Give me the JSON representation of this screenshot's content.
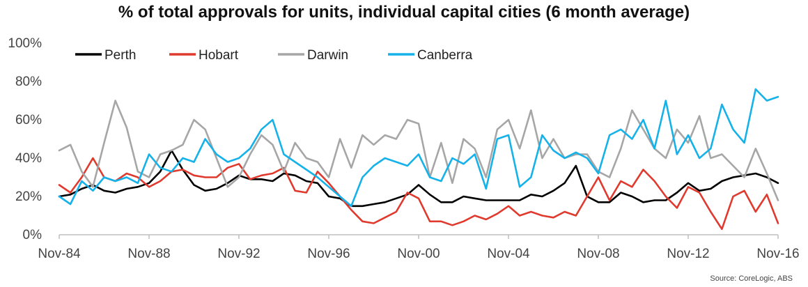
{
  "chart_data": {
    "type": "line",
    "title": "% of total approvals for units, individual capital cities (6 month average)",
    "xlabel": "",
    "ylabel": "",
    "x_ticks": [
      "Nov-84",
      "Nov-88",
      "Nov-92",
      "Nov-96",
      "Nov-00",
      "Nov-04",
      "Nov-08",
      "Nov-12",
      "Nov-16"
    ],
    "y_ticks": [
      "0%",
      "20%",
      "40%",
      "60%",
      "80%",
      "100%"
    ],
    "xlim": [
      "1984-11",
      "2016-11"
    ],
    "ylim": [
      0,
      100
    ],
    "grid": false,
    "legend_position": "top-left",
    "x": [
      "1984-11",
      "1985-05",
      "1985-11",
      "1986-05",
      "1986-11",
      "1987-05",
      "1987-11",
      "1988-05",
      "1988-11",
      "1989-05",
      "1989-11",
      "1990-05",
      "1990-11",
      "1991-05",
      "1991-11",
      "1992-05",
      "1992-11",
      "1993-05",
      "1993-11",
      "1994-05",
      "1994-11",
      "1995-05",
      "1995-11",
      "1996-05",
      "1996-11",
      "1997-05",
      "1997-11",
      "1998-05",
      "1998-11",
      "1999-05",
      "1999-11",
      "2000-05",
      "2000-11",
      "2001-05",
      "2001-11",
      "2002-05",
      "2002-11",
      "2003-05",
      "2003-11",
      "2004-05",
      "2004-11",
      "2005-05",
      "2005-11",
      "2006-05",
      "2006-11",
      "2007-05",
      "2007-11",
      "2008-05",
      "2008-11",
      "2009-05",
      "2009-11",
      "2010-05",
      "2010-11",
      "2011-05",
      "2011-11",
      "2012-05",
      "2012-11",
      "2013-05",
      "2013-11",
      "2014-05",
      "2014-11",
      "2015-05",
      "2015-11",
      "2016-05",
      "2016-11"
    ],
    "series": [
      {
        "name": "Perth",
        "color": "#000000",
        "values": [
          20,
          21,
          24,
          26,
          23,
          22,
          24,
          25,
          27,
          33,
          44,
          34,
          26,
          23,
          24,
          27,
          31,
          29,
          29,
          28,
          32,
          31,
          28,
          27,
          20,
          19,
          15,
          15,
          16,
          17,
          19,
          21,
          26,
          21,
          17,
          17,
          20,
          19,
          18,
          18,
          18,
          18,
          21,
          20,
          23,
          27,
          36,
          20,
          17,
          17,
          22,
          20,
          17,
          18,
          18,
          22,
          27,
          23,
          24,
          28,
          30,
          31,
          32,
          30,
          27
        ]
      },
      {
        "name": "Hobart",
        "color": "#e03a2e",
        "values": [
          26,
          22,
          30,
          40,
          30,
          28,
          32,
          30,
          25,
          28,
          33,
          34,
          31,
          30,
          30,
          35,
          37,
          29,
          31,
          32,
          35,
          23,
          22,
          33,
          27,
          20,
          13,
          7,
          6,
          9,
          12,
          22,
          19,
          7,
          7,
          5,
          7,
          10,
          8,
          11,
          15,
          10,
          12,
          10,
          9,
          12,
          10,
          20,
          30,
          18,
          28,
          25,
          34,
          28,
          20,
          14,
          25,
          22,
          12,
          3,
          20,
          23,
          12,
          21,
          6
        ]
      },
      {
        "name": "Darwin",
        "color": "#a6a6a6",
        "values": [
          44,
          47,
          33,
          25,
          48,
          70,
          56,
          33,
          30,
          42,
          44,
          47,
          60,
          55,
          40,
          25,
          30,
          42,
          52,
          47,
          33,
          48,
          40,
          38,
          30,
          50,
          35,
          52,
          47,
          52,
          50,
          60,
          58,
          30,
          48,
          27,
          50,
          45,
          30,
          55,
          60,
          45,
          65,
          40,
          50,
          40,
          42,
          42,
          33,
          30,
          45,
          65,
          55,
          45,
          40,
          55,
          48,
          62,
          40,
          42,
          36,
          30,
          45,
          32,
          18
        ]
      },
      {
        "name": "Canberra",
        "color": "#15b2ea",
        "values": [
          20,
          16,
          28,
          23,
          30,
          28,
          30,
          27,
          42,
          35,
          33,
          40,
          38,
          50,
          42,
          38,
          40,
          45,
          55,
          60,
          42,
          38,
          34,
          30,
          25,
          20,
          15,
          30,
          36,
          40,
          38,
          36,
          42,
          30,
          28,
          40,
          37,
          42,
          24,
          50,
          52,
          25,
          30,
          52,
          44,
          40,
          43,
          40,
          32,
          52,
          55,
          50,
          60,
          45,
          70,
          42,
          52,
          40,
          45,
          68,
          55,
          48,
          76,
          70,
          72
        ]
      }
    ]
  },
  "source_note": "Source: CoreLogic, ABS"
}
